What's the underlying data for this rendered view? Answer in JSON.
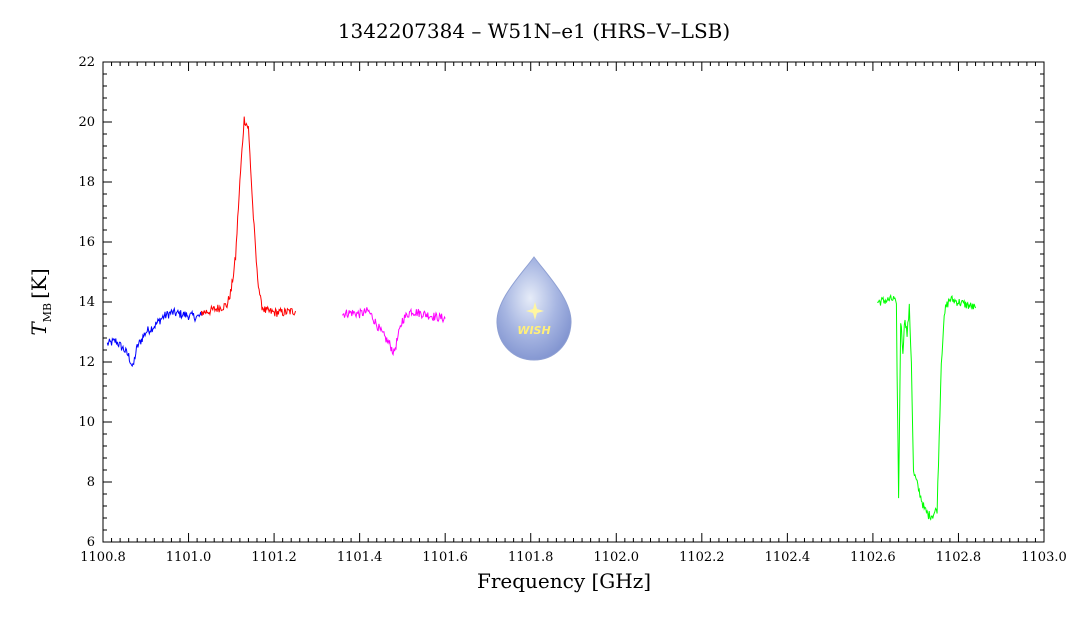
{
  "chart_data": {
    "type": "line",
    "title": "1342207384 – W51N–e1 (HRS–V–LSB)",
    "xlabel": "Frequency [GHz]",
    "ylabel_main": "T",
    "ylabel_sub": "MB",
    "ylabel_unit": "[K]",
    "xlim": [
      1100.8,
      1103.0
    ],
    "ylim": [
      6,
      22
    ],
    "x_ticks": [
      "1100.8",
      "1101.0",
      "1101.2",
      "1101.4",
      "1101.6",
      "1101.8",
      "1102.0",
      "1102.2",
      "1102.4",
      "1102.6",
      "1102.8",
      "1103.0"
    ],
    "y_ticks": [
      "6",
      "8",
      "10",
      "12",
      "14",
      "16",
      "18",
      "20",
      "22"
    ],
    "grid": false,
    "logo_text": "WISH",
    "series": [
      {
        "color": "#0000ff",
        "x": [
          1100.81,
          1100.83,
          1100.85,
          1100.86,
          1100.87,
          1100.875,
          1100.88,
          1100.9,
          1100.92,
          1100.94,
          1100.96,
          1100.98,
          1101.0,
          1101.02,
          1101.03
        ],
        "y": [
          12.6,
          12.7,
          12.4,
          12.2,
          11.8,
          12.2,
          12.5,
          13.0,
          13.2,
          13.5,
          13.65,
          13.6,
          13.55,
          13.5,
          13.55
        ]
      },
      {
        "color": "#ff0000",
        "x": [
          1101.03,
          1101.05,
          1101.07,
          1101.09,
          1101.1,
          1101.11,
          1101.12,
          1101.13,
          1101.14,
          1101.15,
          1101.16,
          1101.17,
          1101.18,
          1101.2,
          1101.22,
          1101.25
        ],
        "y": [
          13.65,
          13.7,
          13.8,
          13.9,
          14.4,
          15.5,
          18.0,
          20.1,
          19.8,
          17.2,
          15.0,
          13.9,
          13.7,
          13.65,
          13.65,
          13.7
        ]
      },
      {
        "color": "#ff00ff",
        "x": [
          1101.36,
          1101.38,
          1101.4,
          1101.42,
          1101.43,
          1101.45,
          1101.47,
          1101.48,
          1101.5,
          1101.52,
          1101.55,
          1101.58,
          1101.6
        ],
        "y": [
          13.6,
          13.65,
          13.6,
          13.7,
          13.5,
          13.0,
          12.6,
          12.3,
          13.4,
          13.7,
          13.6,
          13.5,
          13.45
        ]
      },
      {
        "color": "#00ff00",
        "x": [
          1102.61,
          1102.63,
          1102.65,
          1102.655,
          1102.66,
          1102.665,
          1102.67,
          1102.675,
          1102.68,
          1102.685,
          1102.69,
          1102.695,
          1102.7,
          1102.71,
          1102.72,
          1102.73,
          1102.74,
          1102.75,
          1102.755,
          1102.76,
          1102.765,
          1102.77,
          1102.78,
          1102.8,
          1102.82,
          1102.84
        ],
        "y": [
          14.0,
          14.05,
          14.1,
          13.8,
          7.4,
          13.4,
          12.4,
          13.5,
          12.9,
          13.8,
          12.0,
          8.3,
          8.1,
          7.6,
          7.1,
          6.9,
          6.9,
          7.1,
          9.5,
          12.0,
          13.2,
          13.8,
          14.1,
          14.0,
          13.9,
          13.8
        ]
      }
    ]
  }
}
